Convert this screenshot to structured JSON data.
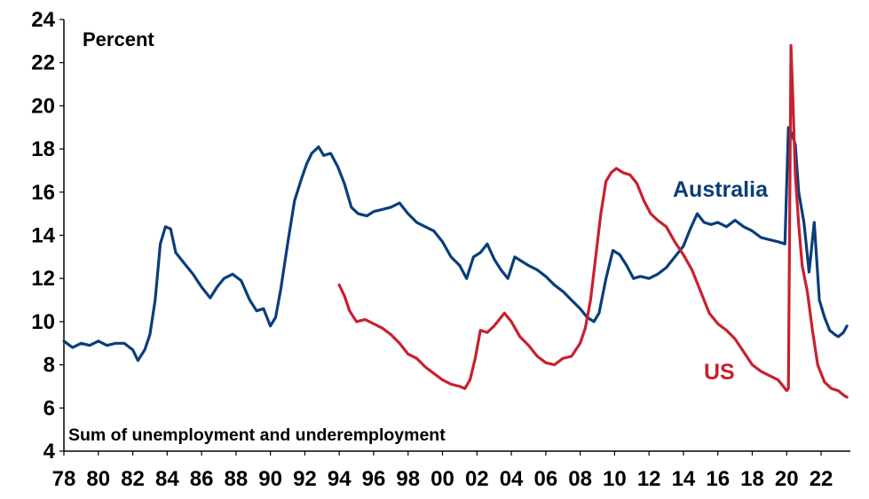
{
  "chart_data": {
    "type": "line",
    "unit_label": "Percent",
    "annotation": "Sum of unemployment and underemployment",
    "ylim": [
      4,
      24
    ],
    "y_ticks": [
      "4",
      "6",
      "8",
      "10",
      "12",
      "14",
      "16",
      "18",
      "20",
      "22",
      "24"
    ],
    "xlim": [
      1978,
      2023.7
    ],
    "x_ticks": [
      "78",
      "80",
      "82",
      "84",
      "86",
      "88",
      "90",
      "92",
      "94",
      "96",
      "98",
      "00",
      "02",
      "04",
      "06",
      "08",
      "10",
      "12",
      "14",
      "16",
      "18",
      "20",
      "22"
    ],
    "grid": false,
    "series": [
      {
        "name": "Australia",
        "color": "#0a3e7a",
        "x": [
          1978.0,
          1978.5,
          1979.0,
          1979.5,
          1980.0,
          1980.5,
          1981.0,
          1981.5,
          1982.0,
          1982.3,
          1982.7,
          1983.0,
          1983.3,
          1983.6,
          1983.9,
          1984.2,
          1984.5,
          1985.0,
          1985.5,
          1986.0,
          1986.5,
          1986.9,
          1987.3,
          1987.8,
          1988.3,
          1988.8,
          1989.2,
          1989.6,
          1990.0,
          1990.3,
          1990.6,
          1991.0,
          1991.4,
          1991.8,
          1992.1,
          1992.4,
          1992.8,
          1993.1,
          1993.5,
          1993.9,
          1994.3,
          1994.7,
          1995.1,
          1995.6,
          1996.0,
          1996.5,
          1997.0,
          1997.5,
          1998.0,
          1998.5,
          1999.0,
          1999.5,
          2000.0,
          2000.5,
          2001.0,
          2001.4,
          2001.8,
          2002.2,
          2002.6,
          2003.0,
          2003.4,
          2003.8,
          2004.2,
          2004.6,
          2005.0,
          2005.5,
          2006.0,
          2006.5,
          2007.0,
          2007.5,
          2008.0,
          2008.4,
          2008.8,
          2009.1,
          2009.5,
          2009.9,
          2010.3,
          2010.7,
          2011.1,
          2011.5,
          2012.0,
          2012.5,
          2013.0,
          2013.5,
          2014.0,
          2014.4,
          2014.8,
          2015.2,
          2015.6,
          2016.0,
          2016.5,
          2017.0,
          2017.5,
          2018.0,
          2018.5,
          2019.0,
          2019.5,
          2019.9,
          2020.1,
          2020.3,
          2020.5,
          2020.7,
          2021.0,
          2021.3,
          2021.6,
          2021.9,
          2022.2,
          2022.5,
          2022.8,
          2023.0,
          2023.3,
          2023.5
        ],
        "values": [
          9.1,
          8.8,
          9.0,
          8.9,
          9.1,
          8.9,
          9.0,
          9.0,
          8.7,
          8.2,
          8.7,
          9.4,
          11.0,
          13.6,
          14.4,
          14.3,
          13.2,
          12.7,
          12.2,
          11.6,
          11.1,
          11.6,
          12.0,
          12.2,
          11.9,
          11.0,
          10.5,
          10.6,
          9.8,
          10.2,
          11.5,
          13.6,
          15.6,
          16.6,
          17.3,
          17.8,
          18.1,
          17.7,
          17.8,
          17.2,
          16.4,
          15.3,
          15.0,
          14.9,
          15.1,
          15.2,
          15.3,
          15.5,
          15.0,
          14.6,
          14.4,
          14.2,
          13.7,
          13.0,
          12.6,
          12.0,
          13.0,
          13.2,
          13.6,
          12.9,
          12.4,
          12.0,
          13.0,
          12.8,
          12.6,
          12.4,
          12.1,
          11.7,
          11.4,
          11.0,
          10.6,
          10.2,
          10.0,
          10.4,
          12.0,
          13.3,
          13.1,
          12.6,
          12.0,
          12.1,
          12.0,
          12.2,
          12.5,
          13.0,
          13.5,
          14.3,
          15.0,
          14.6,
          14.5,
          14.6,
          14.4,
          14.7,
          14.4,
          14.2,
          13.9,
          13.8,
          13.7,
          13.6,
          19.0,
          18.7,
          18.2,
          16.0,
          14.6,
          12.3,
          14.6,
          11.0,
          10.2,
          9.6,
          9.4,
          9.3,
          9.5,
          9.8
        ]
      },
      {
        "name": "US",
        "color": "#c8202f",
        "x": [
          1994.0,
          1994.3,
          1994.6,
          1995.0,
          1995.5,
          1996.0,
          1996.5,
          1997.0,
          1997.5,
          1998.0,
          1998.5,
          1999.0,
          1999.5,
          2000.0,
          2000.5,
          2001.0,
          2001.3,
          2001.6,
          2001.9,
          2002.2,
          2002.6,
          2003.0,
          2003.3,
          2003.6,
          2004.0,
          2004.5,
          2005.0,
          2005.5,
          2006.0,
          2006.5,
          2007.0,
          2007.5,
          2008.0,
          2008.3,
          2008.6,
          2008.9,
          2009.2,
          2009.5,
          2009.8,
          2010.1,
          2010.5,
          2010.9,
          2011.3,
          2011.7,
          2012.1,
          2012.5,
          2013.0,
          2013.5,
          2014.0,
          2014.5,
          2015.0,
          2015.5,
          2016.0,
          2016.5,
          2017.0,
          2017.5,
          2018.0,
          2018.5,
          2019.0,
          2019.5,
          2019.8,
          2020.0,
          2020.1,
          2020.25,
          2020.35,
          2020.5,
          2020.7,
          2020.9,
          2021.2,
          2021.5,
          2021.8,
          2022.2,
          2022.6,
          2023.0,
          2023.3,
          2023.5
        ],
        "values": [
          11.7,
          11.2,
          10.5,
          10.0,
          10.1,
          9.9,
          9.7,
          9.4,
          9.0,
          8.5,
          8.3,
          7.9,
          7.6,
          7.3,
          7.1,
          7.0,
          6.9,
          7.3,
          8.3,
          9.6,
          9.5,
          9.8,
          10.1,
          10.4,
          10.0,
          9.3,
          8.9,
          8.4,
          8.1,
          8.0,
          8.3,
          8.4,
          9.0,
          9.7,
          11.0,
          13.0,
          15.0,
          16.5,
          16.9,
          17.1,
          16.9,
          16.8,
          16.4,
          15.6,
          15.0,
          14.7,
          14.4,
          13.7,
          13.1,
          12.4,
          11.4,
          10.4,
          9.9,
          9.6,
          9.2,
          8.6,
          8.0,
          7.7,
          7.5,
          7.3,
          7.0,
          6.8,
          6.9,
          22.8,
          20.5,
          16.8,
          14.5,
          12.6,
          11.4,
          9.6,
          8.0,
          7.2,
          6.9,
          6.8,
          6.6,
          6.5
        ]
      }
    ]
  }
}
